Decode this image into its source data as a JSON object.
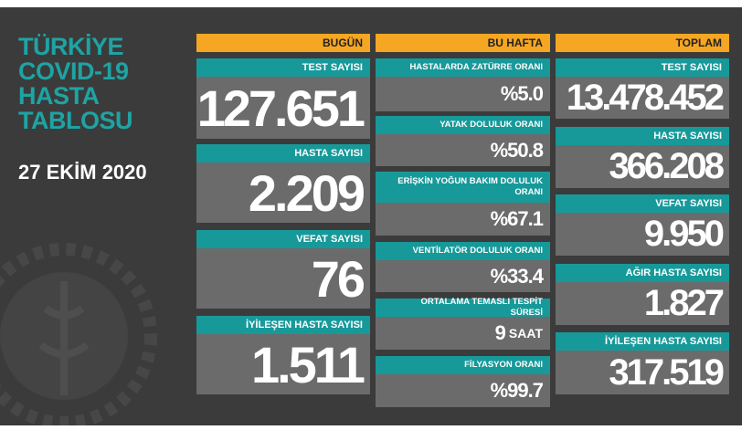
{
  "title": [
    "TÜRKİYE",
    "COVID-19",
    "HASTA",
    "TABLOSU"
  ],
  "date": "27 EKİM 2020",
  "columns": [
    {
      "header": "BUGÜN",
      "cards": [
        {
          "label": "TEST SAYISI",
          "value": "127.651"
        },
        {
          "label": "HASTA SAYISI",
          "value": "2.209"
        },
        {
          "label": "VEFAT SAYISI",
          "value": "76"
        },
        {
          "label": "İYİLEŞEN HASTA SAYISI",
          "value": "1.511"
        }
      ]
    },
    {
      "header": "BU HAFTA",
      "cards": [
        {
          "label": "HASTALARDA ZATÜRRE ORANI",
          "value": "%5.0"
        },
        {
          "label": "YATAK DOLULUK ORANI",
          "value": "%50.8"
        },
        {
          "label": "ERİŞKİN YOĞUN BAKIM DOLULUK ORANI",
          "value": "%67.1"
        },
        {
          "label": "VENTİLATÖR DOLULUK ORANI",
          "value": "%33.4"
        },
        {
          "label": "ORTALAMA TEMASLI TESPİT SÜRESİ",
          "value": "9",
          "unit": "SAAT"
        },
        {
          "label": "FİLYASYON ORANI",
          "value": "%99.7"
        }
      ]
    },
    {
      "header": "TOPLAM",
      "cards": [
        {
          "label": "TEST SAYISI",
          "value": "13.478.452"
        },
        {
          "label": "HASTA SAYISI",
          "value": "366.208"
        },
        {
          "label": "VEFAT SAYISI",
          "value": "9.950"
        },
        {
          "label": "AĞIR HASTA SAYISI",
          "value": "1.827"
        },
        {
          "label": "İYİLEŞEN HASTA SAYISI",
          "value": "317.519"
        }
      ]
    }
  ]
}
